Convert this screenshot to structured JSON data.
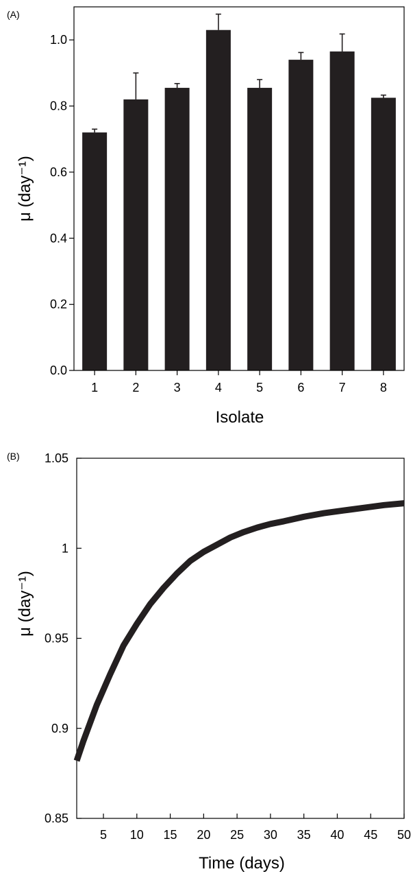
{
  "chart_data": [
    {
      "panel_label": "(A)",
      "type": "bar",
      "categories": [
        "1",
        "2",
        "3",
        "4",
        "5",
        "6",
        "7",
        "8"
      ],
      "values": [
        0.72,
        0.82,
        0.855,
        1.03,
        0.855,
        0.94,
        0.965,
        0.825
      ],
      "error_upper": [
        0.73,
        0.9,
        0.868,
        1.078,
        0.88,
        0.962,
        1.018,
        0.833
      ],
      "xlabel": "Isolate",
      "ylabel": "μ (day⁻¹)",
      "ylim": [
        0.0,
        1.1
      ],
      "yticks": [
        0.0,
        0.2,
        0.4,
        0.6,
        0.8,
        1.0
      ],
      "ytick_labels": [
        "0.0",
        "0.2",
        "0.4",
        "0.6",
        "0.8",
        "1.0"
      ],
      "bar_color": "#231f20",
      "grid": false
    },
    {
      "panel_label": "(B)",
      "type": "line",
      "series": [
        {
          "x": [
            1,
            2,
            4,
            6,
            8,
            10,
            12,
            14,
            16,
            18,
            20,
            22,
            24,
            26,
            28,
            30,
            32,
            35,
            38,
            41,
            44,
            47,
            50
          ],
          "y": [
            0.882,
            0.893,
            0.913,
            0.93,
            0.946,
            0.958,
            0.969,
            0.978,
            0.986,
            0.993,
            0.998,
            1.002,
            1.006,
            1.009,
            1.0115,
            1.0135,
            1.015,
            1.0175,
            1.0195,
            1.021,
            1.0225,
            1.024,
            1.025
          ]
        }
      ],
      "xlabel": "Time (days)",
      "ylabel": "μ (day⁻¹)",
      "xlim": [
        1,
        50
      ],
      "ylim": [
        0.85,
        1.05
      ],
      "xticks": [
        5,
        10,
        15,
        20,
        25,
        30,
        35,
        40,
        45,
        50
      ],
      "xtick_labels": [
        "5",
        "10",
        "15",
        "20",
        "25",
        "30",
        "35",
        "40",
        "45",
        "50"
      ],
      "yticks": [
        0.85,
        0.9,
        0.95,
        1.0,
        1.05
      ],
      "ytick_labels": [
        "0.85",
        "0.9",
        "0.95",
        "1",
        "1.05"
      ],
      "line_color": "#231f20",
      "grid": false
    }
  ]
}
